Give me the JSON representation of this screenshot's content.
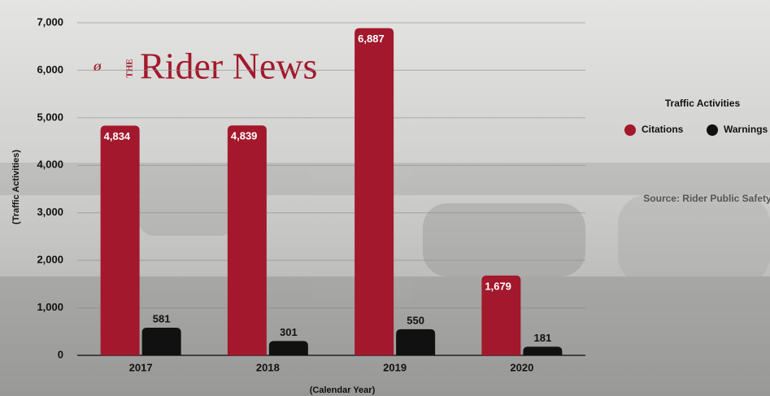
{
  "chart_data": {
    "type": "bar",
    "logo_prefix": "THE",
    "logo": "Rider News",
    "x_label": "(Calendar Year)",
    "y_label": "(Traffic Activities)",
    "legend_title": "Traffic Activities",
    "source": "Source: Rider Public Safety",
    "categories": [
      "2017",
      "2018",
      "2019",
      "2020"
    ],
    "series": [
      {
        "name": "Citations",
        "color": "#a3182c",
        "values": [
          4834,
          4839,
          6887,
          1679
        ],
        "value_labels": [
          "4,834",
          "4,839",
          "6,887",
          "1,679"
        ]
      },
      {
        "name": "Warnings",
        "color": "#111111",
        "values": [
          581,
          301,
          550,
          181
        ]
      }
    ],
    "ylim": [
      0,
      7000
    ],
    "yticks": [
      0,
      {
        "value": 1000,
        "label": "1,000"
      },
      {
        "value": 2000,
        "label": "2,000"
      },
      {
        "value": 3000,
        "label": "3,000"
      },
      {
        "value": 4000,
        "label": "4,000"
      },
      {
        "value": 5000,
        "label": "5,000"
      },
      {
        "value": 6000,
        "label": "6,000"
      },
      {
        "value": 7000,
        "label": "7,000"
      }
    ],
    "grid": true
  }
}
